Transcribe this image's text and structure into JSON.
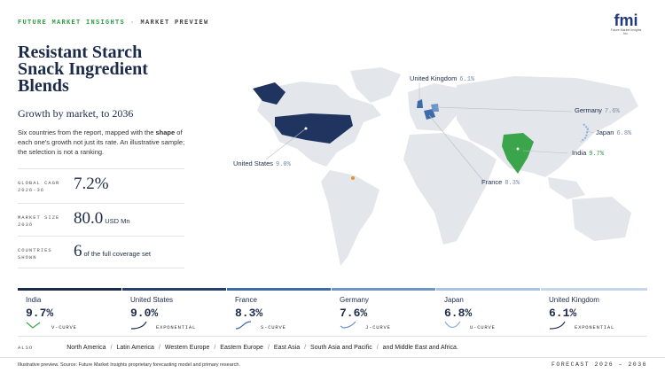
{
  "header": {
    "brand": "FUTURE MARKET INSIGHTS",
    "separator": "·",
    "section": "MARKET PREVIEW"
  },
  "logo": {
    "mark": "fmi",
    "caption": "Future Market Insights Inc."
  },
  "title": "Resistant Starch Snack Ingredient Blends",
  "subtitle": "Growth by market, to 2036",
  "description": [
    "Six countries from the report, mapped with the ",
    "shape",
    " of each one's growth not just its rate. An illustrative sample; the selection is not a ranking."
  ],
  "stats": [
    {
      "label": "GLOBAL CAGR 2026-36",
      "value": "7.2%"
    },
    {
      "label": "MARKET SIZE 2036",
      "value": "80.0",
      "unit": "USD Mn"
    },
    {
      "label": "COUNTRIES SHOWN",
      "value": "6",
      "unit": "of the full coverage set"
    }
  ],
  "countries": [
    {
      "name": "India",
      "cagr": "9.7%",
      "curve": "V-CURVE"
    },
    {
      "name": "United States",
      "cagr": "9.0%",
      "curve": "EXPONENTIAL"
    },
    {
      "name": "France",
      "cagr": "8.3%",
      "curve": "S-CURVE"
    },
    {
      "name": "Germany",
      "cagr": "7.6%",
      "curve": "J-CURVE"
    },
    {
      "name": "Japan",
      "cagr": "6.8%",
      "curve": "U-CURVE"
    },
    {
      "name": "United Kingdom",
      "cagr": "6.1%",
      "curve": "EXPONENTIAL"
    }
  ],
  "also": {
    "label": "ALSO",
    "separator": "/",
    "regions": [
      "North America",
      "Latin America",
      "Western Europe",
      "Eastern Europe",
      "East Asia",
      "South Asia and Pacific",
      "and Middle East and Africa."
    ]
  },
  "footer": {
    "source": "Illustrative preview. Source: Future Market Insights proprietary forecasting model and primary research.",
    "forecast": "FORECAST 2026 – 2036"
  }
}
